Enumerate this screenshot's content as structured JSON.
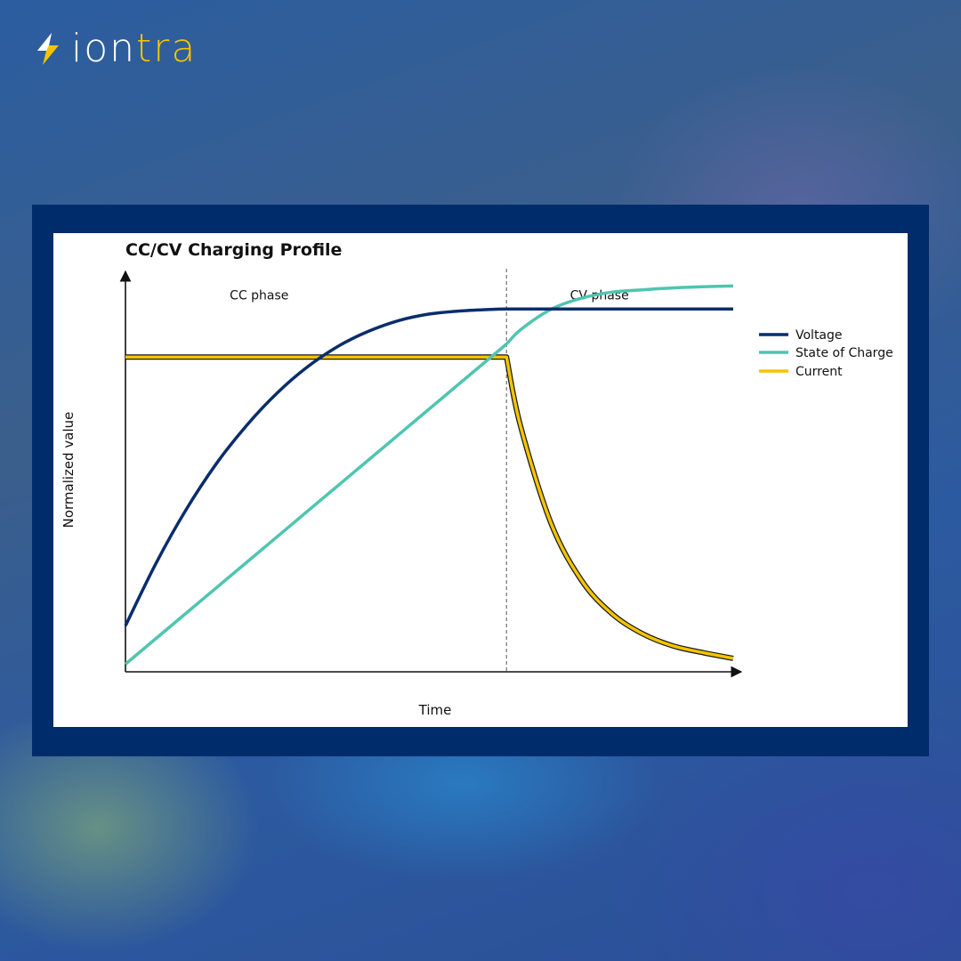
{
  "brand": {
    "name_white": "ion",
    "name_yellow": "tra",
    "colors": {
      "white": "#ffffff",
      "yellow": "#f5c400",
      "frame": "#002c6b"
    },
    "icon": "lightning-bolt-icon"
  },
  "chart_data": {
    "type": "line",
    "title": "CC/CV Charging Profile",
    "xlabel": "Time",
    "ylabel": "Normalized value",
    "xlim": [
      0,
      1
    ],
    "ylim": [
      0,
      1.05
    ],
    "grid": false,
    "legend_position": "right",
    "phase_boundary_x": 0.627,
    "annotations": [
      {
        "text": "CC phase",
        "x": 0.22,
        "y": 0.97
      },
      {
        "text": "CV phase",
        "x": 0.78,
        "y": 0.97
      }
    ],
    "series": [
      {
        "name": "Voltage",
        "color": "#0a2d6b",
        "x": [
          0.0,
          0.05,
          0.1,
          0.15,
          0.2,
          0.25,
          0.3,
          0.35,
          0.4,
          0.45,
          0.5,
          0.55,
          0.6,
          0.627,
          0.7,
          0.8,
          0.9,
          1.0
        ],
        "y": [
          0.12,
          0.282,
          0.423,
          0.543,
          0.643,
          0.727,
          0.795,
          0.848,
          0.887,
          0.915,
          0.932,
          0.94,
          0.944,
          0.945,
          0.945,
          0.945,
          0.945,
          0.945
        ]
      },
      {
        "name": "State of Charge",
        "color": "#4fc5b0",
        "x": [
          0.0,
          0.1,
          0.2,
          0.3,
          0.4,
          0.5,
          0.6,
          0.627,
          0.65,
          0.7,
          0.75,
          0.8,
          0.85,
          0.9,
          0.95,
          1.0
        ],
        "y": [
          0.02,
          0.153,
          0.286,
          0.419,
          0.552,
          0.685,
          0.818,
          0.854,
          0.891,
          0.944,
          0.973,
          0.989,
          0.995,
          1.0,
          1.003,
          1.005
        ]
      },
      {
        "name": "Current",
        "color": "#f5c400",
        "x": [
          0.0,
          0.2,
          0.4,
          0.6,
          0.627,
          0.65,
          0.7,
          0.75,
          0.8,
          0.85,
          0.9,
          0.95,
          1.0
        ],
        "y": [
          0.82,
          0.82,
          0.82,
          0.82,
          0.82,
          0.64,
          0.388,
          0.239,
          0.152,
          0.1,
          0.068,
          0.05,
          0.035
        ]
      }
    ]
  }
}
